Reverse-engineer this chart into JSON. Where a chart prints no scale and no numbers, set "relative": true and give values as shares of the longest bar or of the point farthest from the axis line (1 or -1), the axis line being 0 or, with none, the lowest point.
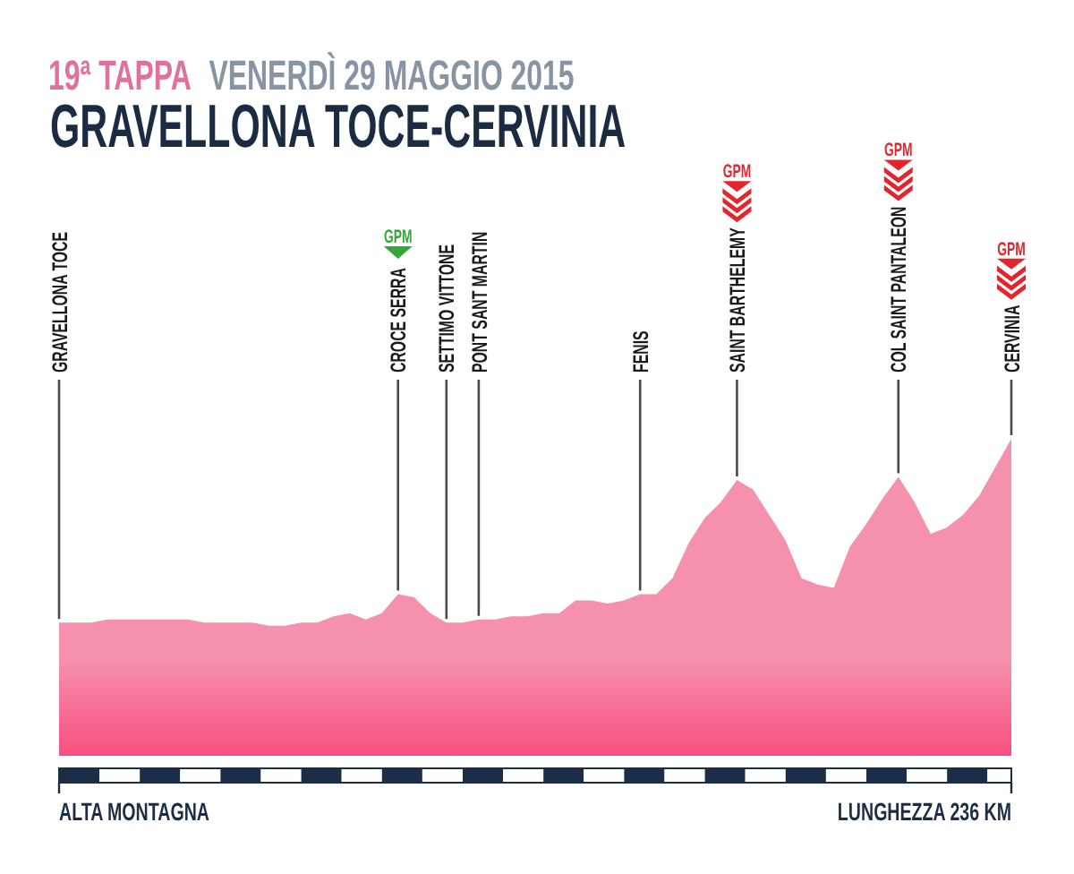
{
  "chart_data": {
    "type": "area",
    "relative": true,
    "grid": "x",
    "title": "GRAVELLONA TOCE-CERVINIA",
    "subtitle": "19ª TAPPA VENERDÌ 29 MAGGIO 2015",
    "categories": [
      "GRAVELLONA TOCE",
      null,
      null,
      null,
      null,
      null,
      null,
      null,
      null,
      null,
      null,
      null,
      null,
      null,
      null,
      null,
      null,
      null,
      null,
      null,
      null,
      "CROCE SERRA",
      null,
      null,
      "SETTIMO VITTONE",
      null,
      "PONT SANT MARTIN",
      null,
      null,
      null,
      null,
      null,
      null,
      null,
      null,
      null,
      "FENIS",
      null,
      null,
      null,
      null,
      null,
      "SAINT BARTHELEMY",
      null,
      null,
      null,
      null,
      null,
      null,
      null,
      null,
      null,
      "COL SAINT PANTALEON",
      null,
      null,
      null,
      null,
      null,
      null,
      "CERVINIA"
    ],
    "values": [
      0.42,
      0.42,
      0.42,
      0.43,
      0.43,
      0.43,
      0.43,
      0.43,
      0.43,
      0.42,
      0.42,
      0.42,
      0.42,
      0.41,
      0.41,
      0.42,
      0.42,
      0.44,
      0.45,
      0.43,
      0.45,
      0.51,
      0.5,
      0.45,
      0.42,
      0.42,
      0.43,
      0.43,
      0.44,
      0.44,
      0.45,
      0.45,
      0.49,
      0.49,
      0.48,
      0.49,
      0.51,
      0.51,
      0.56,
      0.67,
      0.75,
      0.8,
      0.87,
      0.84,
      0.76,
      0.68,
      0.56,
      0.54,
      0.53,
      0.66,
      0.73,
      0.81,
      0.88,
      0.8,
      0.7,
      0.72,
      0.76,
      0.82,
      0.91,
      1
    ],
    "color": "#f590ad",
    "annotations": [
      "GPM",
      "GPM",
      "GPM",
      "GPM",
      "ALTA MONTAGNA",
      "LUNGHEZZA 236 KM"
    ]
  }
}
